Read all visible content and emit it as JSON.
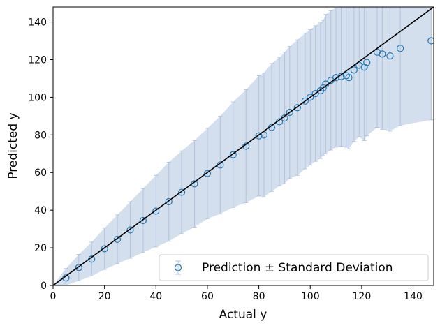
{
  "chart_data": {
    "type": "scatter",
    "xlabel": "Actual y",
    "ylabel": "Predicted y",
    "xlim": [
      0,
      148
    ],
    "ylim": [
      0,
      148
    ],
    "xticks": [
      0,
      20,
      40,
      60,
      80,
      100,
      120,
      140
    ],
    "yticks": [
      0,
      20,
      40,
      60,
      80,
      100,
      120,
      140
    ],
    "legend": {
      "label": "Prediction ± Standard Deviation",
      "placement": "lower-right"
    },
    "identity_line": {
      "from": [
        0,
        0
      ],
      "to": [
        148,
        148
      ],
      "color": "#000000"
    },
    "colors": {
      "marker": "#1f77b4",
      "errorbar": "#b0c4de",
      "line": "#000000"
    },
    "series": [
      {
        "name": "Prediction ± Standard Deviation",
        "points": [
          [
            5,
            4,
            5
          ],
          [
            10,
            9.5,
            7
          ],
          [
            15,
            14,
            9
          ],
          [
            20,
            19.5,
            11
          ],
          [
            25,
            24.5,
            13
          ],
          [
            30,
            29.5,
            15
          ],
          [
            35,
            34.5,
            17
          ],
          [
            40,
            39.5,
            19
          ],
          [
            45,
            44.5,
            21
          ],
          [
            50,
            49.5,
            22
          ],
          [
            55,
            54,
            23
          ],
          [
            60,
            59.5,
            24
          ],
          [
            65,
            64,
            26
          ],
          [
            70,
            69.5,
            28
          ],
          [
            75,
            74,
            30
          ],
          [
            80,
            79.5,
            32
          ],
          [
            82,
            80,
            33
          ],
          [
            85,
            84,
            34
          ],
          [
            88,
            87,
            34
          ],
          [
            90,
            89,
            35
          ],
          [
            92,
            92,
            35
          ],
          [
            95,
            94.5,
            36
          ],
          [
            98,
            98,
            36
          ],
          [
            100,
            100,
            36
          ],
          [
            102,
            102,
            36
          ],
          [
            104,
            103.5,
            36
          ],
          [
            105,
            105,
            36
          ],
          [
            106,
            107,
            37
          ],
          [
            108,
            109,
            37
          ],
          [
            110,
            110.5,
            37
          ],
          [
            112,
            111,
            37
          ],
          [
            114,
            111.5,
            38
          ],
          [
            115,
            110.5,
            38
          ],
          [
            117,
            114.5,
            38
          ],
          [
            119,
            117,
            38
          ],
          [
            121,
            116,
            39
          ],
          [
            122,
            118.5,
            39
          ],
          [
            126,
            124,
            40
          ],
          [
            128,
            123,
            40
          ],
          [
            131,
            122,
            40
          ],
          [
            135,
            126,
            41
          ],
          [
            147,
            130,
            42
          ]
        ]
      }
    ]
  }
}
